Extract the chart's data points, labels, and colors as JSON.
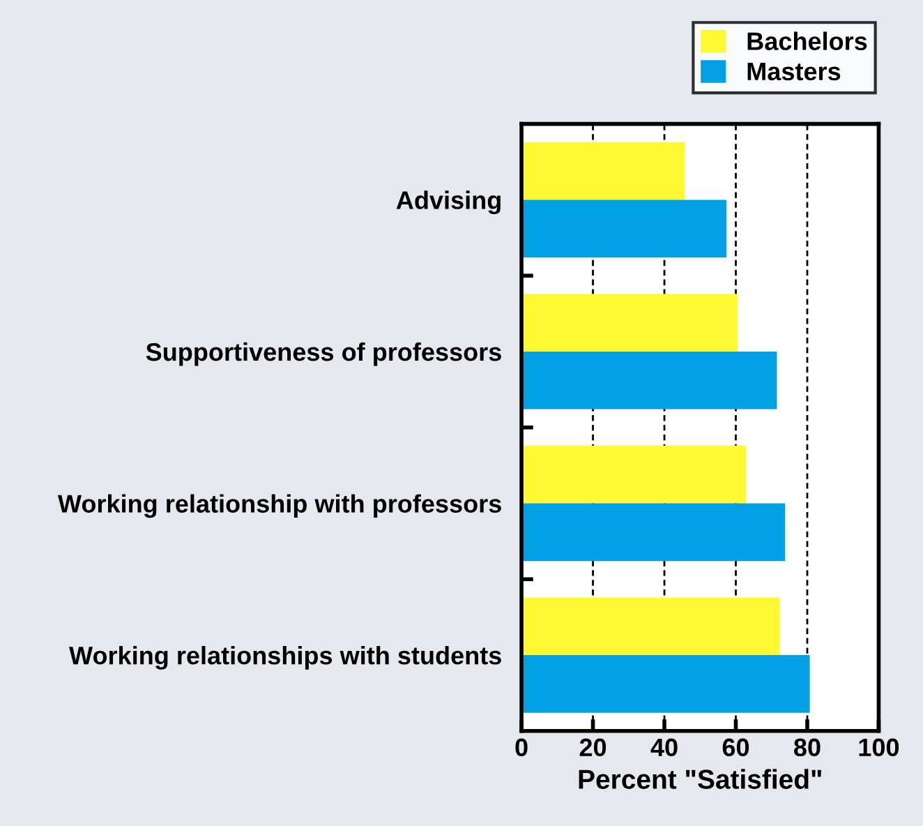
{
  "chart_data": {
    "type": "bar",
    "orientation": "horizontal",
    "xlabel": "Percent \"Satisfied\"",
    "categories": [
      "Advising",
      "Supportiveness of professors",
      "Working relationship with professors",
      "Working relationships with students"
    ],
    "series": [
      {
        "name": "Bachelors",
        "color": "#fef832",
        "values": [
          45.7,
          60.5,
          62.9,
          72.3
        ]
      },
      {
        "name": "Masters",
        "color": "#02a0e4",
        "values": [
          57.4,
          71.5,
          73.8,
          80.7
        ]
      }
    ],
    "xlim": [
      0,
      100
    ],
    "xticks": [
      0,
      20,
      40,
      60,
      80,
      100
    ],
    "grid": "x",
    "legend": "top right"
  }
}
